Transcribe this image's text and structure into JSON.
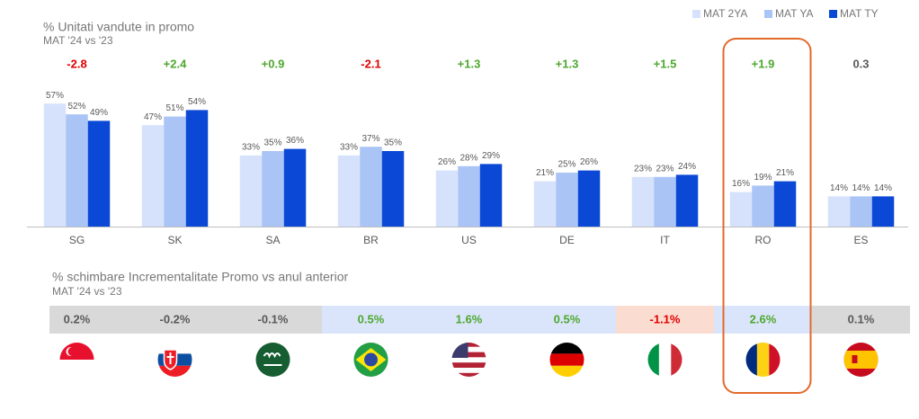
{
  "chart_data": {
    "type": "bar",
    "title": "% Unitati vandute in promo",
    "subtitle": "MAT '24 vs '23",
    "categories": [
      "SG",
      "SK",
      "SA",
      "BR",
      "US",
      "DE",
      "IT",
      "RO",
      "ES"
    ],
    "series": [
      {
        "name": "MAT 2YA",
        "color": "#d6e2fb",
        "values": [
          57,
          47,
          33,
          33,
          26,
          21,
          23,
          16,
          14
        ],
        "value_labels": [
          "57%",
          "47%",
          "33%",
          "33%",
          "26%",
          "21%",
          "23%",
          "16%",
          "14%"
        ]
      },
      {
        "name": "MAT YA",
        "color": "#a9c4f5",
        "values": [
          52,
          51,
          35,
          37,
          28,
          25,
          23,
          19,
          14
        ],
        "value_labels": [
          "52%",
          "51%",
          "35%",
          "37%",
          "28%",
          "25%",
          "23%",
          "19%",
          "14%"
        ]
      },
      {
        "name": "MAT TY",
        "color": "#0b48d6",
        "values": [
          49,
          54,
          36,
          35,
          29,
          26,
          24,
          21,
          14
        ],
        "value_labels": [
          "49%",
          "54%",
          "36%",
          "35%",
          "29%",
          "26%",
          "24%",
          "21%",
          "14%"
        ]
      }
    ],
    "changes": [
      "-2.8",
      "+2.4",
      "+0.9",
      "-2.1",
      "+1.3",
      "+1.3",
      "+1.5",
      "+1.9",
      "0.3"
    ],
    "change_colors": [
      "#e00000",
      "#4ea72e",
      "#4ea72e",
      "#e00000",
      "#4ea72e",
      "#4ea72e",
      "#4ea72e",
      "#4ea72e",
      "#595959"
    ],
    "incrementality": {
      "title": "% schimbare Incrementalitate Promo vs anul anterior",
      "subtitle": "MAT '24 vs '23",
      "labels": [
        "0.2%",
        "-0.2%",
        "-0.1%",
        "0.5%",
        "1.6%",
        "0.5%",
        "-1.1%",
        "2.6%",
        "0.1%"
      ],
      "text_colors": [
        "#595959",
        "#595959",
        "#595959",
        "#4ea72e",
        "#4ea72e",
        "#4ea72e",
        "#e00000",
        "#4ea72e",
        "#595959"
      ],
      "cell_colors": [
        "#d9d9d9",
        "#d9d9d9",
        "#d9d9d9",
        "#dae5fb",
        "#dae5fb",
        "#dae5fb",
        "#fbdcd0",
        "#dae5fb",
        "#d9d9d9"
      ]
    },
    "highlight_color": "#e2692a"
  }
}
